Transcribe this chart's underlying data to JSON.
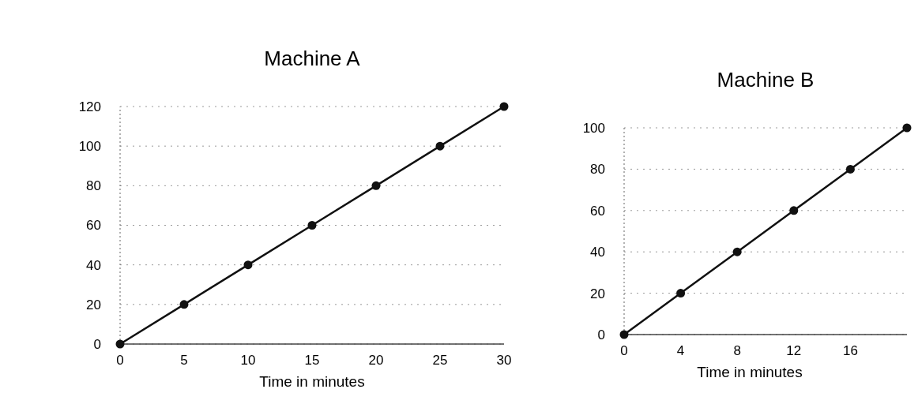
{
  "chart_data": [
    {
      "type": "line",
      "title": "Machine A",
      "xlabel": "Time in minutes",
      "x": [
        0,
        5,
        10,
        15,
        20,
        25,
        30
      ],
      "series": [
        {
          "color": "#111111",
          "values": [
            0,
            20,
            40,
            60,
            80,
            100,
            120
          ]
        }
      ],
      "xlim": [
        0,
        30
      ],
      "ylim": [
        0,
        120
      ],
      "xticks": [
        0,
        5,
        10,
        15,
        20,
        25,
        30
      ],
      "yticks": [
        0,
        20,
        40,
        60,
        80,
        100,
        120
      ],
      "grid": "y",
      "marker": "circle"
    },
    {
      "type": "line",
      "title": "Machine B",
      "xlabel": "Time in minutes",
      "x": [
        0,
        4,
        8,
        12,
        16,
        20
      ],
      "series": [
        {
          "color": "#111111",
          "values": [
            0,
            20,
            40,
            60,
            80,
            100
          ]
        }
      ],
      "xlim": [
        0,
        20
      ],
      "ylim": [
        0,
        100
      ],
      "xticks": [
        0,
        4,
        8,
        12,
        16
      ],
      "yticks": [
        0,
        20,
        40,
        60,
        80,
        100
      ],
      "grid": "y",
      "marker": "circle"
    }
  ]
}
